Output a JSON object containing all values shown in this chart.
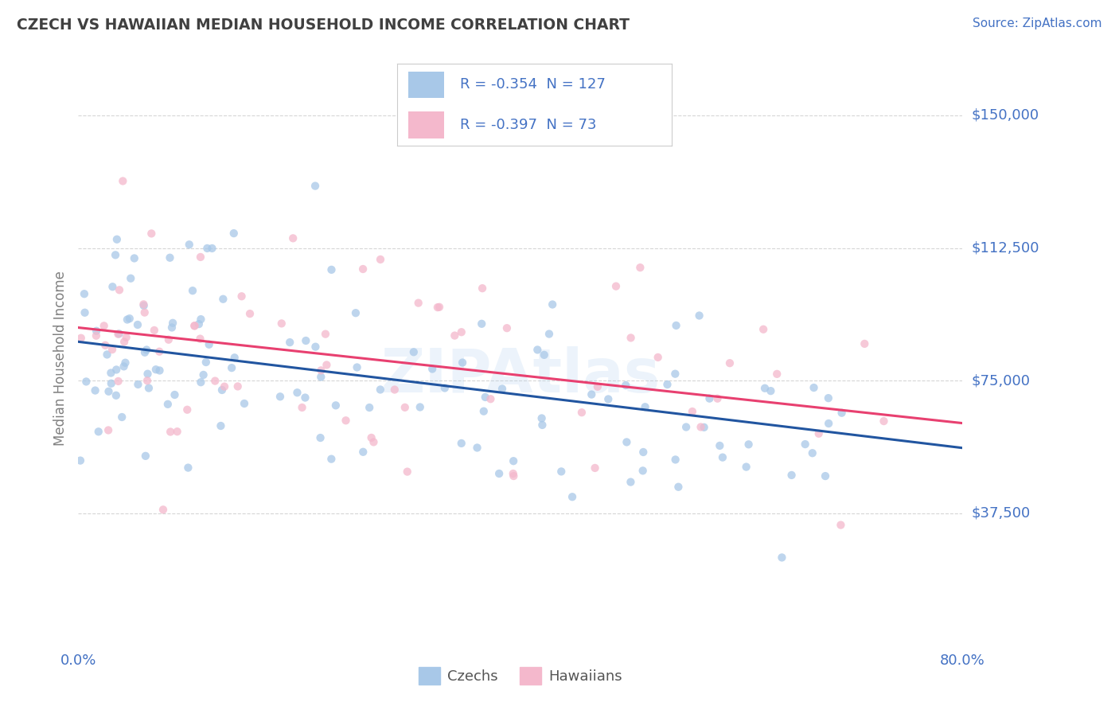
{
  "title": "CZECH VS HAWAIIAN MEDIAN HOUSEHOLD INCOME CORRELATION CHART",
  "source_text": "Source: ZipAtlas.com",
  "ylabel": "Median Household Income",
  "xlim": [
    0.0,
    0.8
  ],
  "ylim": [
    0,
    162500
  ],
  "xtick_labels": [
    "0.0%",
    "80.0%"
  ],
  "ytick_positions": [
    37500,
    75000,
    112500,
    150000
  ],
  "ytick_labels": [
    "$37,500",
    "$75,000",
    "$112,500",
    "$150,000"
  ],
  "czech_color": "#a8c8e8",
  "hawaiian_color": "#f4b8cc",
  "czech_line_color": "#2155a0",
  "hawaiian_line_color": "#e84070",
  "czech_R": -0.354,
  "czech_N": 127,
  "hawaiian_R": -0.397,
  "hawaiian_N": 73,
  "watermark": "ZIPAtlas",
  "bg_color": "#ffffff",
  "grid_color": "#cccccc",
  "text_color": "#4472c4",
  "title_color": "#404040",
  "axis_label_color": "#808080",
  "legend_label_color": "#555555",
  "legend_label_czech": "Czechs",
  "legend_label_hawaiian": "Hawaiians",
  "czech_line_y0": 86000,
  "czech_line_y1": 56000,
  "hawaiian_line_y0": 90000,
  "hawaiian_line_y1": 63000
}
